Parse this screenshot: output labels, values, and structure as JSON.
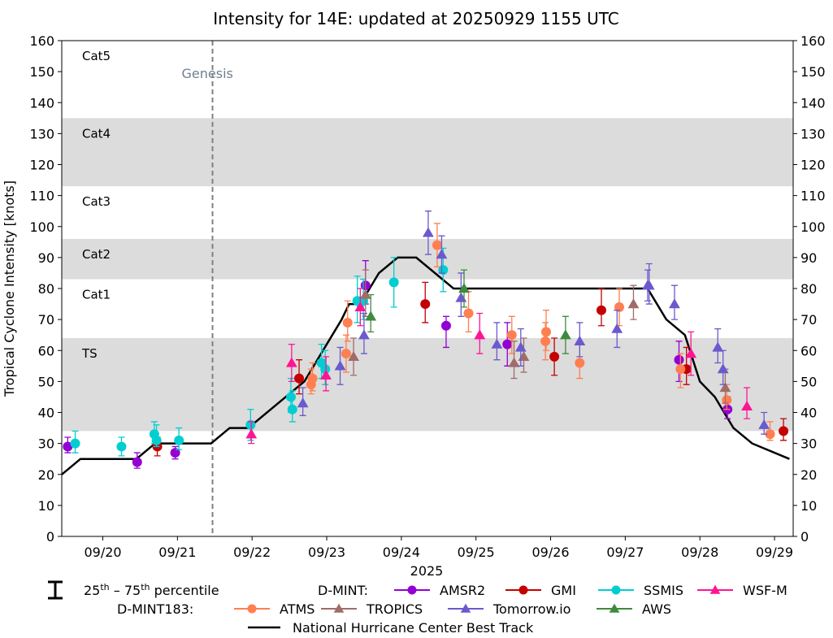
{
  "chart_data": {
    "type": "line",
    "title": "Intensity for 14E: updated at 20250929 1155 UTC",
    "ylabel": "Tropical Cyclone Intensity [knots]",
    "xlabel": "2025",
    "xlim": [
      -0.25,
      9.55
    ],
    "ylim": [
      0,
      160
    ],
    "yticks": [
      0,
      10,
      20,
      30,
      40,
      50,
      60,
      70,
      80,
      90,
      100,
      110,
      120,
      130,
      140,
      150,
      160
    ],
    "xticks": [
      {
        "x": 0.3,
        "label": "09/20"
      },
      {
        "x": 1.3,
        "label": "09/21"
      },
      {
        "x": 2.3,
        "label": "09/22"
      },
      {
        "x": 3.3,
        "label": "09/23"
      },
      {
        "x": 4.3,
        "label": "09/24"
      },
      {
        "x": 5.3,
        "label": "09/25"
      },
      {
        "x": 6.3,
        "label": "09/26"
      },
      {
        "x": 7.3,
        "label": "09/27"
      },
      {
        "x": 8.3,
        "label": "09/28"
      },
      {
        "x": 9.3,
        "label": "09/29"
      }
    ],
    "genesis": {
      "x": 1.77,
      "label": "Genesis"
    },
    "bands": [
      {
        "label": "TS",
        "low": 34,
        "high": 64,
        "shaded": true
      },
      {
        "label": "Cat1",
        "low": 64,
        "high": 83,
        "shaded": false
      },
      {
        "label": "Cat2",
        "low": 83,
        "high": 96,
        "shaded": true
      },
      {
        "label": "Cat3",
        "low": 96,
        "high": 113,
        "shaded": false
      },
      {
        "label": "Cat4",
        "low": 113,
        "high": 135,
        "shaded": true
      },
      {
        "label": "Cat5",
        "low": 135,
        "high": 160,
        "shaded": false
      }
    ],
    "best_track": {
      "name": "National Hurricane Center Best Track",
      "color": "#000000",
      "points": [
        [
          -0.25,
          20
        ],
        [
          0,
          25
        ],
        [
          0.75,
          25
        ],
        [
          1.0,
          30
        ],
        [
          1.75,
          30
        ],
        [
          2.0,
          35
        ],
        [
          2.25,
          35
        ],
        [
          2.75,
          45
        ],
        [
          3.0,
          50
        ],
        [
          3.25,
          60
        ],
        [
          3.5,
          70
        ],
        [
          3.6,
          75
        ],
        [
          3.75,
          75
        ],
        [
          4.0,
          85
        ],
        [
          4.25,
          90
        ],
        [
          4.5,
          90
        ],
        [
          5.0,
          80
        ],
        [
          7.6,
          80
        ],
        [
          7.85,
          70
        ],
        [
          8.1,
          65
        ],
        [
          8.3,
          50
        ],
        [
          8.5,
          45
        ],
        [
          8.75,
          35
        ],
        [
          9.0,
          30
        ],
        [
          9.5,
          25
        ]
      ]
    },
    "series": [
      {
        "group": "D-MINT",
        "name": "AMSR2",
        "color": "#9400d3",
        "marker": "circle",
        "points": [
          [
            -0.17,
            29,
            27,
            32
          ],
          [
            0.76,
            24,
            22,
            27
          ],
          [
            1.27,
            27,
            25,
            29
          ],
          [
            3.82,
            81,
            75,
            89
          ],
          [
            4.9,
            68,
            61,
            71
          ],
          [
            5.72,
            62,
            55,
            69
          ],
          [
            8.02,
            57,
            50,
            63
          ],
          [
            8.67,
            41,
            38,
            45
          ]
        ]
      },
      {
        "group": "D-MINT",
        "name": "GMI",
        "color": "#c40000",
        "marker": "circle",
        "points": [
          [
            1.03,
            29,
            26,
            32
          ],
          [
            2.93,
            51,
            46,
            57
          ],
          [
            4.62,
            75,
            69,
            82
          ],
          [
            6.35,
            58,
            52,
            64
          ],
          [
            6.98,
            73,
            68,
            80
          ],
          [
            8.12,
            54,
            49,
            61
          ],
          [
            9.42,
            34,
            31,
            38
          ]
        ]
      },
      {
        "group": "D-MINT",
        "name": "SSMIS",
        "color": "#00ced1",
        "marker": "circle",
        "points": [
          [
            -0.07,
            30,
            27,
            34
          ],
          [
            0.55,
            29,
            26,
            32
          ],
          [
            0.99,
            33,
            30,
            37
          ],
          [
            1.02,
            31,
            29,
            36
          ],
          [
            1.32,
            31,
            28,
            35
          ],
          [
            2.28,
            36,
            31,
            41
          ],
          [
            2.82,
            45,
            40,
            51
          ],
          [
            2.84,
            41,
            37,
            47
          ],
          [
            3.23,
            56,
            51,
            62
          ],
          [
            3.28,
            54,
            49,
            60
          ],
          [
            3.71,
            76,
            69,
            84
          ],
          [
            3.79,
            76,
            70,
            83
          ],
          [
            4.2,
            82,
            74,
            90
          ],
          [
            4.86,
            86,
            79,
            93
          ]
        ]
      },
      {
        "group": "D-MINT",
        "name": "WSF-M",
        "color": "#ff1493",
        "marker": "triangle",
        "points": [
          [
            2.29,
            33,
            30,
            37
          ],
          [
            2.83,
            56,
            50,
            62
          ],
          [
            3.29,
            52,
            47,
            58
          ],
          [
            3.75,
            74,
            68,
            80
          ],
          [
            5.35,
            65,
            59,
            72
          ],
          [
            8.18,
            59,
            52,
            66
          ],
          [
            8.93,
            42,
            38,
            48
          ]
        ]
      },
      {
        "group": "D-MINT183",
        "name": "ATMS",
        "color": "#ff7f50",
        "marker": "circle",
        "points": [
          [
            3.09,
            49,
            46,
            54
          ],
          [
            3.11,
            51,
            47,
            56
          ],
          [
            3.56,
            59,
            53,
            65
          ],
          [
            3.58,
            69,
            63,
            76
          ],
          [
            4.78,
            94,
            87,
            101
          ],
          [
            5.2,
            72,
            66,
            79
          ],
          [
            5.78,
            65,
            59,
            71
          ],
          [
            6.23,
            63,
            57,
            69
          ],
          [
            6.24,
            66,
            60,
            73
          ],
          [
            6.69,
            56,
            51,
            62
          ],
          [
            7.22,
            74,
            68,
            80
          ],
          [
            8.04,
            54,
            48,
            59
          ],
          [
            8.66,
            44,
            41,
            49
          ],
          [
            9.24,
            33,
            31,
            37
          ]
        ]
      },
      {
        "group": "D-MINT183",
        "name": "TROPICS",
        "color": "#a06c68",
        "marker": "triangle",
        "points": [
          [
            3.66,
            58,
            52,
            64
          ],
          [
            3.82,
            78,
            71,
            86
          ],
          [
            5.81,
            56,
            51,
            63
          ],
          [
            5.94,
            58,
            53,
            64
          ],
          [
            7.41,
            75,
            70,
            81
          ],
          [
            8.64,
            48,
            43,
            54
          ]
        ]
      },
      {
        "group": "D-MINT183",
        "name": "Tomorrow.io",
        "color": "#6a5acd",
        "marker": "triangle",
        "points": [
          [
            2.98,
            43,
            39,
            48
          ],
          [
            3.48,
            55,
            49,
            61
          ],
          [
            3.8,
            65,
            59,
            72
          ],
          [
            4.66,
            98,
            91,
            105
          ],
          [
            4.84,
            91,
            85,
            97
          ],
          [
            5.1,
            77,
            71,
            85
          ],
          [
            5.58,
            62,
            57,
            69
          ],
          [
            5.9,
            61,
            55,
            67
          ],
          [
            6.69,
            63,
            58,
            69
          ],
          [
            7.19,
            67,
            61,
            73
          ],
          [
            7.6,
            81,
            76,
            86
          ],
          [
            7.62,
            81,
            75,
            88
          ],
          [
            7.96,
            75,
            70,
            81
          ],
          [
            8.54,
            61,
            56,
            67
          ],
          [
            8.61,
            54,
            49,
            60
          ],
          [
            9.16,
            36,
            33,
            40
          ]
        ]
      },
      {
        "group": "D-MINT183",
        "name": "AWS",
        "color": "#3d8b3d",
        "marker": "triangle",
        "points": [
          [
            3.89,
            71,
            66,
            78
          ],
          [
            5.14,
            80,
            74,
            86
          ],
          [
            6.5,
            65,
            59,
            71
          ]
        ]
      }
    ],
    "legend": {
      "percentile_label": "25th – 75th percentile",
      "dmint_label": "D-MINT:",
      "dmint183_label": "D-MINT183:"
    }
  }
}
